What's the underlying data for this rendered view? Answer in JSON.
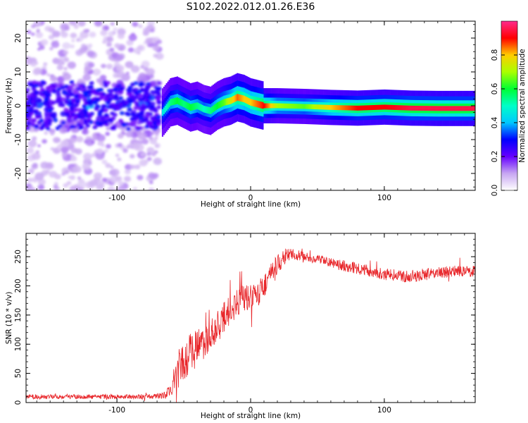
{
  "figure_title": "S102.2022.012.01.26.E36",
  "colors": {
    "snr_line": "#e8262a",
    "colormap": [
      "#ffffff",
      "#e2c8f5",
      "#7f00ff",
      "#0000ff",
      "#00e5ff",
      "#00ff66",
      "#ffee00",
      "#ff0000",
      "#ff2a8c"
    ]
  },
  "chart_data": [
    {
      "type": "heatmap",
      "xlabel": "Height of straight line (km)",
      "ylabel": "Frequency (Hz)",
      "xlim": [
        -168,
        168
      ],
      "ylim": [
        -25,
        25
      ],
      "xticks": [
        -100,
        0,
        100
      ],
      "yticks": [
        -20,
        -10,
        0,
        10,
        20
      ],
      "colorbar": {
        "label": "Normalized spectral amplitude",
        "range": [
          0.0,
          1.0
        ],
        "ticks": [
          0.0,
          0.2,
          0.4,
          0.6,
          0.8
        ]
      },
      "regions": [
        {
          "x_from": -168,
          "x_to": -68,
          "description": "noise: scattered low amplitude speckles across all frequencies, 0.1-0.3 near 0 Hz"
        },
        {
          "x_from": -68,
          "x_to": 168,
          "description": "narrow line centred near 0 Hz"
        }
      ],
      "ridge": {
        "x": [
          -66,
          -60,
          -55,
          -50,
          -45,
          -40,
          -35,
          -30,
          -25,
          -20,
          -15,
          -10,
          -5,
          0,
          5,
          10,
          20,
          40,
          60,
          80,
          100,
          120,
          140,
          168
        ],
        "freq_hz": [
          -2,
          1,
          1.5,
          0.5,
          -0.5,
          0,
          -1,
          -1.5,
          0,
          1,
          1.5,
          2.5,
          2,
          1,
          0.5,
          0,
          0,
          -0.2,
          -0.5,
          -0.7,
          -0.4,
          -0.7,
          -0.8,
          -0.8
        ],
        "amplitude": [
          0.45,
          0.55,
          0.6,
          0.55,
          0.6,
          0.55,
          0.5,
          0.55,
          0.6,
          0.65,
          0.75,
          0.85,
          0.8,
          0.8,
          0.85,
          0.9,
          0.7,
          0.65,
          0.8,
          0.9,
          0.9,
          0.95,
          0.95,
          0.95
        ]
      }
    },
    {
      "type": "line",
      "xlabel": "Height of straight line (km)",
      "ylabel": "SNR (10 * v/v)",
      "xlim": [
        -168,
        168
      ],
      "ylim": [
        0,
        290
      ],
      "xticks": [
        -100,
        0,
        100
      ],
      "yticks": [
        0,
        50,
        100,
        150,
        200,
        250
      ],
      "series": [
        {
          "x": [
            -168,
            -140,
            -110,
            -80,
            -65,
            -60,
            -55,
            -50,
            -45,
            -40,
            -35,
            -30,
            -25,
            -20,
            -15,
            -10,
            -5,
            0,
            5,
            10,
            15,
            20,
            25,
            30,
            40,
            50,
            60,
            70,
            80,
            90,
            100,
            110,
            120,
            130,
            140,
            150,
            168
          ],
          "y": [
            10,
            10,
            10,
            10,
            12,
            20,
            50,
            70,
            85,
            95,
            105,
            110,
            130,
            145,
            160,
            170,
            180,
            180,
            185,
            200,
            220,
            235,
            250,
            255,
            250,
            245,
            240,
            235,
            230,
            225,
            220,
            218,
            215,
            220,
            222,
            225,
            225
          ],
          "noise_amplitude": [
            4,
            4,
            4,
            4,
            5,
            15,
            30,
            35,
            35,
            35,
            30,
            30,
            28,
            28,
            25,
            25,
            25,
            22,
            22,
            22,
            20,
            18,
            14,
            10,
            8,
            8,
            8,
            10,
            10,
            10,
            10,
            10,
            10,
            10,
            10,
            10,
            10
          ]
        }
      ]
    }
  ]
}
